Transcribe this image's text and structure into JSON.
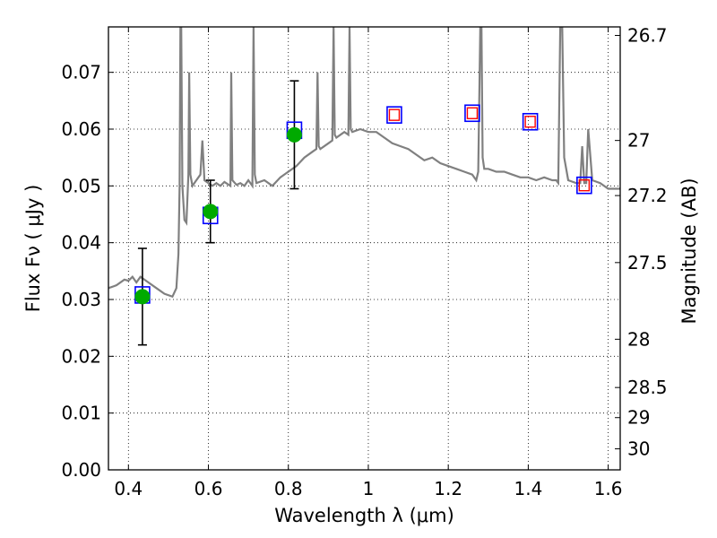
{
  "chart_data": {
    "type": "line",
    "title": "",
    "xlabel": "Wavelength  λ (μm)",
    "ylabel": "Flux  Fν  ( μJy )",
    "y2label": "Magnitude (AB)",
    "xlim": [
      0.35,
      1.63
    ],
    "ylim": [
      0.0,
      0.078
    ],
    "grid": "dotted",
    "x_ticks": [
      0.4,
      0.6,
      0.8,
      1.0,
      1.2,
      1.4,
      1.6
    ],
    "x_tick_labels": [
      "0.4",
      "0.6",
      "0.8",
      "1",
      "1.2",
      "1.4",
      "1.6"
    ],
    "y_ticks": [
      0.0,
      0.01,
      0.02,
      0.03,
      0.04,
      0.05,
      0.06,
      0.07
    ],
    "y_tick_labels": [
      "0.00",
      "0.01",
      "0.02",
      "0.03",
      "0.04",
      "0.05",
      "0.06",
      "0.07"
    ],
    "mag_ticks": [
      {
        "label": "26.7",
        "flux": 0.0765
      },
      {
        "label": "27",
        "flux": 0.058
      },
      {
        "label": "27.2",
        "flux": 0.0483
      },
      {
        "label": "27.5",
        "flux": 0.0365
      },
      {
        "label": "28",
        "flux": 0.023
      },
      {
        "label": "28.5",
        "flux": 0.0145
      },
      {
        "label": "29",
        "flux": 0.0092
      },
      {
        "label": "30",
        "flux": 0.0037
      }
    ],
    "series": [
      {
        "name": "model spectrum",
        "color": "#808080",
        "x": [
          0.35,
          0.37,
          0.39,
          0.4,
          0.41,
          0.42,
          0.43,
          0.45,
          0.47,
          0.49,
          0.51,
          0.52,
          0.525,
          0.528,
          0.53,
          0.532,
          0.535,
          0.54,
          0.545,
          0.55,
          0.552,
          0.555,
          0.56,
          0.57,
          0.58,
          0.585,
          0.59,
          0.6,
          0.61,
          0.62,
          0.63,
          0.64,
          0.655,
          0.657,
          0.66,
          0.67,
          0.68,
          0.69,
          0.7,
          0.71,
          0.713,
          0.716,
          0.72,
          0.74,
          0.76,
          0.78,
          0.8,
          0.82,
          0.84,
          0.86,
          0.87,
          0.873,
          0.876,
          0.88,
          0.9,
          0.91,
          0.913,
          0.916,
          0.92,
          0.94,
          0.95,
          0.953,
          0.956,
          0.96,
          0.98,
          1.0,
          1.02,
          1.04,
          1.06,
          1.08,
          1.1,
          1.12,
          1.14,
          1.16,
          1.18,
          1.2,
          1.22,
          1.24,
          1.26,
          1.27,
          1.275,
          1.28,
          1.283,
          1.286,
          1.29,
          1.3,
          1.32,
          1.34,
          1.36,
          1.38,
          1.4,
          1.42,
          1.44,
          1.46,
          1.47,
          1.475,
          1.48,
          1.485,
          1.49,
          1.5,
          1.52,
          1.53,
          1.535,
          1.54,
          1.545,
          1.55,
          1.56,
          1.58,
          1.6,
          1.63
        ],
        "y": [
          0.032,
          0.0325,
          0.0335,
          0.0333,
          0.034,
          0.033,
          0.034,
          0.033,
          0.032,
          0.031,
          0.0305,
          0.032,
          0.038,
          0.05,
          0.078,
          0.078,
          0.05,
          0.044,
          0.0435,
          0.052,
          0.07,
          0.052,
          0.05,
          0.051,
          0.052,
          0.058,
          0.051,
          0.0505,
          0.05,
          0.0505,
          0.05,
          0.0507,
          0.05,
          0.07,
          0.051,
          0.0502,
          0.0505,
          0.05,
          0.051,
          0.05,
          0.078,
          0.052,
          0.0505,
          0.051,
          0.05,
          0.0515,
          0.0525,
          0.0535,
          0.055,
          0.056,
          0.0565,
          0.07,
          0.057,
          0.0565,
          0.0575,
          0.058,
          0.078,
          0.059,
          0.0585,
          0.0595,
          0.059,
          0.078,
          0.06,
          0.0595,
          0.06,
          0.0595,
          0.0595,
          0.0585,
          0.0575,
          0.057,
          0.0565,
          0.0555,
          0.0545,
          0.055,
          0.054,
          0.0535,
          0.053,
          0.0525,
          0.052,
          0.051,
          0.0525,
          0.078,
          0.078,
          0.055,
          0.053,
          0.053,
          0.0525,
          0.0525,
          0.052,
          0.0515,
          0.0515,
          0.051,
          0.0515,
          0.051,
          0.051,
          0.0505,
          0.078,
          0.078,
          0.055,
          0.051,
          0.0505,
          0.0505,
          0.057,
          0.0505,
          0.0505,
          0.06,
          0.051,
          0.0505,
          0.0495,
          0.0495
        ]
      },
      {
        "name": "observed photometry",
        "color": "#00aa00",
        "x": [
          0.435,
          0.605,
          0.815
        ],
        "y": [
          0.0305,
          0.0455,
          0.059
        ],
        "yerr": [
          0.0085,
          0.0055,
          0.0095
        ]
      },
      {
        "name": "model photometry (blue boxes)",
        "color": "#0000ff",
        "x": [
          0.435,
          0.605,
          0.815,
          1.065,
          1.26,
          1.405,
          1.54
        ],
        "y": [
          0.0308,
          0.0448,
          0.0598,
          0.0625,
          0.0628,
          0.0613,
          0.0501
        ]
      },
      {
        "name": "predicted photometry (red boxes)",
        "color": "#ff0000",
        "x": [
          1.065,
          1.26,
          1.405,
          1.54
        ],
        "y": [
          0.0625,
          0.0628,
          0.0613,
          0.0501
        ]
      }
    ]
  }
}
